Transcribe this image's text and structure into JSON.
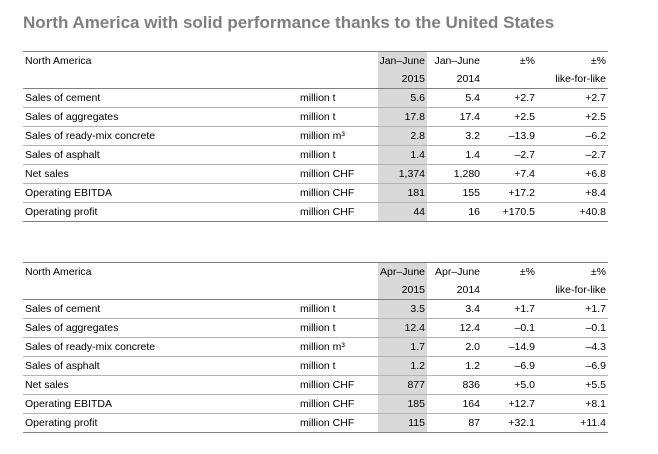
{
  "title": "North America with solid performance thanks to the United States",
  "tables": [
    {
      "region": "North America",
      "period_cur": "Jan–June",
      "period_prev": "Jan–June",
      "year_cur": "2015",
      "year_prev": "2014",
      "pct_label": "±%",
      "lfl_top": "±%",
      "lfl_label": "like-for-like",
      "rows": [
        {
          "label": "Sales of cement",
          "unit": "million t",
          "cur": "5.6",
          "prev": "5.4",
          "pct": "+2.7",
          "lfl": "+2.7"
        },
        {
          "label": "Sales of aggregates",
          "unit": "million t",
          "cur": "17.8",
          "prev": "17.4",
          "pct": "+2.5",
          "lfl": "+2.5"
        },
        {
          "label": "Sales of ready-mix concrete",
          "unit": "million m³",
          "cur": "2.8",
          "prev": "3.2",
          "pct": "–13.9",
          "lfl": "–6.2"
        },
        {
          "label": "Sales of asphalt",
          "unit": "million t",
          "cur": "1.4",
          "prev": "1.4",
          "pct": "–2.7",
          "lfl": "–2.7"
        },
        {
          "label": "Net sales",
          "unit": "million CHF",
          "cur": "1,374",
          "prev": "1,280",
          "pct": "+7.4",
          "lfl": "+6.8"
        },
        {
          "label": "Operating EBITDA",
          "unit": "million CHF",
          "cur": "181",
          "prev": "155",
          "pct": "+17.2",
          "lfl": "+8.4"
        },
        {
          "label": "Operating profit",
          "unit": "million CHF",
          "cur": "44",
          "prev": "16",
          "pct": "+170.5",
          "lfl": "+40.8"
        }
      ]
    },
    {
      "region": "North America",
      "period_cur": "Apr–June",
      "period_prev": "Apr–June",
      "year_cur": "2015",
      "year_prev": "2014",
      "pct_label": "±%",
      "lfl_top": "±%",
      "lfl_label": "like-for-like",
      "rows": [
        {
          "label": "Sales of cement",
          "unit": "million t",
          "cur": "3.5",
          "prev": "3.4",
          "pct": "+1.7",
          "lfl": "+1.7"
        },
        {
          "label": "Sales of aggregates",
          "unit": "million t",
          "cur": "12.4",
          "prev": "12.4",
          "pct": "–0.1",
          "lfl": "–0.1"
        },
        {
          "label": "Sales of ready-mix concrete",
          "unit": "million m³",
          "cur": "1.7",
          "prev": "2.0",
          "pct": "–14.9",
          "lfl": "–4.3"
        },
        {
          "label": "Sales of asphalt",
          "unit": "million t",
          "cur": "1.2",
          "prev": "1.2",
          "pct": "–6.9",
          "lfl": "–6.9"
        },
        {
          "label": "Net sales",
          "unit": "million CHF",
          "cur": "877",
          "prev": "836",
          "pct": "+5.0",
          "lfl": "+5.5"
        },
        {
          "label": "Operating EBITDA",
          "unit": "million CHF",
          "cur": "185",
          "prev": "164",
          "pct": "+12.7",
          "lfl": "+8.1"
        },
        {
          "label": "Operating profit",
          "unit": "million CHF",
          "cur": "115",
          "prev": "87",
          "pct": "+32.1",
          "lfl": "+11.4"
        }
      ]
    }
  ],
  "colors": {
    "title": "#7f7f7f",
    "highlight": "#d9d9d9",
    "rule": "#7f7f7f"
  }
}
